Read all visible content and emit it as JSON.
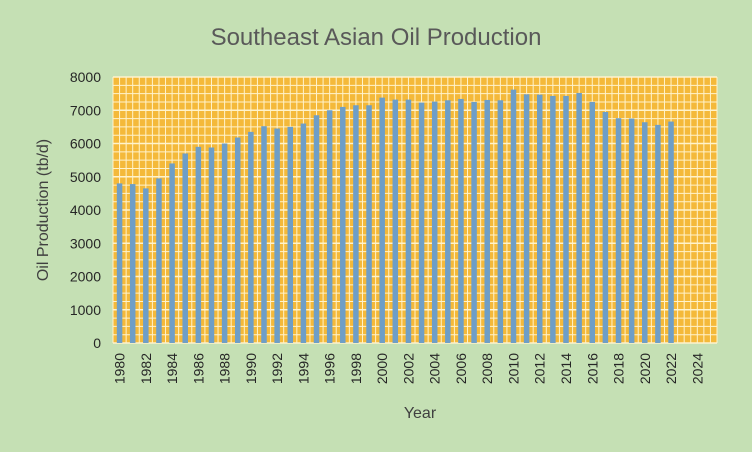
{
  "chart_data": {
    "type": "bar",
    "title": "Southeast Asian Oil Production",
    "xlabel": "Year",
    "ylabel": "Oil Production (tb/d)",
    "ylim": [
      0,
      8000
    ],
    "y_ticks": [
      "0",
      "1000",
      "2000",
      "3000",
      "4000",
      "5000",
      "6000",
      "7000",
      "8000"
    ],
    "x_ticks": [
      "1980",
      "1982",
      "1984",
      "1986",
      "1988",
      "1990",
      "1992",
      "1994",
      "1996",
      "1998",
      "2000",
      "2002",
      "2004",
      "2006",
      "2008",
      "2010",
      "2012",
      "2014",
      "2016",
      "2018",
      "2020",
      "2022",
      "2024"
    ],
    "categories": [
      1980,
      1981,
      1982,
      1983,
      1984,
      1985,
      1986,
      1987,
      1988,
      1989,
      1990,
      1991,
      1992,
      1993,
      1994,
      1995,
      1996,
      1997,
      1998,
      1999,
      2000,
      2001,
      2002,
      2003,
      2004,
      2005,
      2006,
      2007,
      2008,
      2009,
      2010,
      2011,
      2012,
      2013,
      2014,
      2015,
      2016,
      2017,
      2018,
      2019,
      2020,
      2021,
      2022,
      2023,
      2024,
      2025
    ],
    "values": [
      4800,
      4780,
      4650,
      4950,
      5400,
      5700,
      5900,
      5880,
      6000,
      6180,
      6350,
      6520,
      6450,
      6500,
      6600,
      6850,
      7000,
      7100,
      7150,
      7150,
      7380,
      7320,
      7320,
      7230,
      7260,
      7300,
      7340,
      7250,
      7310,
      7300,
      7620,
      7480,
      7470,
      7430,
      7430,
      7520,
      7250,
      6950,
      6760,
      6750,
      6640,
      6560,
      6660,
      null,
      null,
      null
    ],
    "colors": {
      "bar": "#6e9ec7",
      "plot_bg": "#f4b93a",
      "grid": "#fff3cc",
      "chart_bg": "#c5e0b4"
    },
    "grid": true,
    "legend": "none"
  }
}
